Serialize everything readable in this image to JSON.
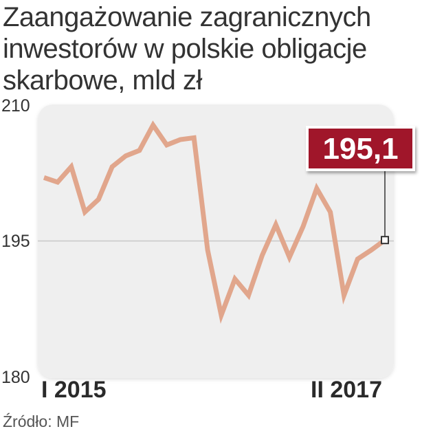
{
  "chart_data": {
    "type": "line",
    "title_lines": [
      "Zaangażowanie zagranicznych",
      "inwestorów w polskie obligacje",
      "skarbowe, mld zł"
    ],
    "ylim": [
      180,
      210
    ],
    "yticks": [
      "210",
      "195",
      "180"
    ],
    "gridlines": [
      195
    ],
    "x_start_label": "I 2015",
    "x_end_label": "II 2017",
    "series": [
      {
        "color": "#e1a68c",
        "values": [
          202.0,
          201.5,
          203.2,
          198.2,
          199.6,
          203.2,
          204.4,
          205.0,
          207.8,
          205.6,
          206.2,
          206.4,
          194.0,
          186.8,
          190.8,
          189.0,
          193.4,
          196.8,
          193.2,
          196.6,
          200.8,
          198.2,
          189.0,
          193.0,
          194.0,
          195.1
        ]
      }
    ],
    "annotation": {
      "label": "195,1",
      "value": 195.1,
      "color": "#a0122a"
    },
    "source": "Źródło: MF"
  },
  "colors": {
    "plot_background": "#efefef",
    "gridline": "#c8c8c8",
    "line": "#e1a68c",
    "badge": "#a0122a"
  }
}
